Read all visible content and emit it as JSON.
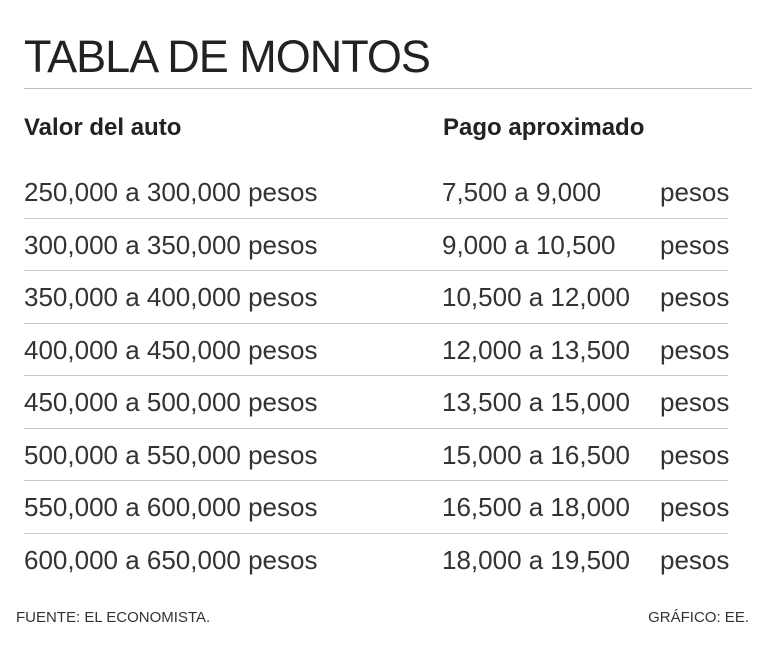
{
  "title": "TABLA DE MONTOS",
  "columns": {
    "value_header": "Valor del auto",
    "payment_header": "Pago aproximado"
  },
  "rows": [
    {
      "value": "250,000 a 300,000 pesos",
      "payment": "7,500 a 9,000",
      "unit": "pesos"
    },
    {
      "value": "300,000 a 350,000 pesos",
      "payment": "9,000 a 10,500",
      "unit": "pesos"
    },
    {
      "value": "350,000 a 400,000 pesos",
      "payment": "10,500 a 12,000",
      "unit": "pesos"
    },
    {
      "value": "400,000 a 450,000 pesos",
      "payment": "12,000 a 13,500",
      "unit": "pesos"
    },
    {
      "value": "450,000 a 500,000 pesos",
      "payment": "13,500 a 15,000",
      "unit": "pesos"
    },
    {
      "value": "500,000 a 550,000 pesos",
      "payment": "15,000 a 16,500",
      "unit": "pesos"
    },
    {
      "value": "550,000 a 600,000 pesos",
      "payment": "16,500 a 18,000",
      "unit": "pesos"
    },
    {
      "value": "600,000 a 650,000 pesos",
      "payment": "18,000 a 19,500",
      "unit": "pesos"
    }
  ],
  "footer": {
    "source": "FUENTE: EL ECONOMISTA.",
    "credit": "GRÁFICO: EE."
  }
}
